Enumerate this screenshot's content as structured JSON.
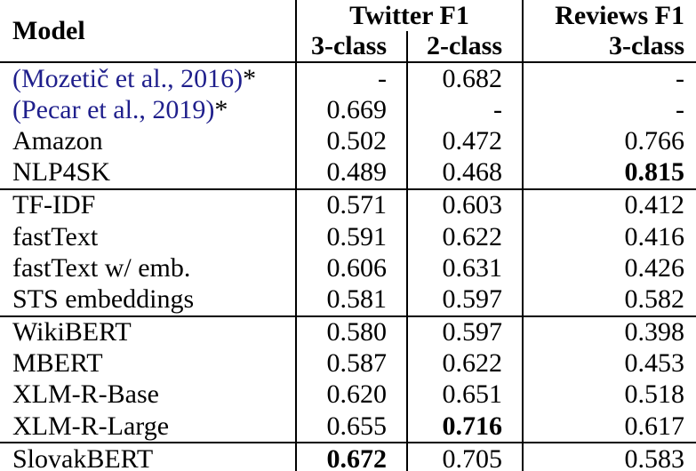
{
  "colors": {
    "text": "#000000",
    "citation_link": "#1f1f8c",
    "rule": "#000000",
    "background": "#ffffff"
  },
  "table": {
    "header": {
      "model": "Model",
      "twitter_group": "Twitter F1",
      "twitter_sub_3": "3-class",
      "twitter_sub_2": "2-class",
      "reviews_group": "Reviews F1",
      "reviews_sub_3": "3-class"
    },
    "groups": [
      {
        "rows": [
          {
            "model": "(Mozetič et al., 2016)",
            "suffix": "*",
            "citation": true,
            "cells": [
              {
                "v": "-"
              },
              {
                "v": "0.682"
              },
              {
                "v": "-"
              }
            ]
          },
          {
            "model": "(Pecar et al., 2019)",
            "suffix": "*",
            "citation": true,
            "cells": [
              {
                "v": "0.669"
              },
              {
                "v": "-"
              },
              {
                "v": "-"
              }
            ]
          },
          {
            "model": "Amazon",
            "cells": [
              {
                "v": "0.502"
              },
              {
                "v": "0.472"
              },
              {
                "v": "0.766"
              }
            ]
          },
          {
            "model": "NLP4SK",
            "cells": [
              {
                "v": "0.489"
              },
              {
                "v": "0.468"
              },
              {
                "v": "0.815",
                "bold": true
              }
            ]
          }
        ]
      },
      {
        "rows": [
          {
            "model": "TF-IDF",
            "cells": [
              {
                "v": "0.571"
              },
              {
                "v": "0.603"
              },
              {
                "v": "0.412"
              }
            ]
          },
          {
            "model": "fastText",
            "cells": [
              {
                "v": "0.591"
              },
              {
                "v": "0.622"
              },
              {
                "v": "0.416"
              }
            ]
          },
          {
            "model": "fastText w/ emb.",
            "cells": [
              {
                "v": "0.606"
              },
              {
                "v": "0.631"
              },
              {
                "v": "0.426"
              }
            ]
          },
          {
            "model": "STS embeddings",
            "cells": [
              {
                "v": "0.581"
              },
              {
                "v": "0.597"
              },
              {
                "v": "0.582"
              }
            ]
          }
        ]
      },
      {
        "rows": [
          {
            "model": "WikiBERT",
            "cells": [
              {
                "v": "0.580"
              },
              {
                "v": "0.597"
              },
              {
                "v": "0.398"
              }
            ]
          },
          {
            "model": "MBERT",
            "cells": [
              {
                "v": "0.587"
              },
              {
                "v": "0.622"
              },
              {
                "v": "0.453"
              }
            ]
          },
          {
            "model": "XLM-R-Base",
            "cells": [
              {
                "v": "0.620"
              },
              {
                "v": "0.651"
              },
              {
                "v": "0.518"
              }
            ]
          },
          {
            "model": "XLM-R-Large",
            "cells": [
              {
                "v": "0.655"
              },
              {
                "v": "0.716",
                "bold": true
              },
              {
                "v": "0.617"
              }
            ]
          }
        ]
      },
      {
        "rows": [
          {
            "model": "SlovakBERT",
            "cells": [
              {
                "v": "0.672",
                "bold": true
              },
              {
                "v": "0.705"
              },
              {
                "v": "0.583"
              }
            ]
          }
        ]
      }
    ]
  }
}
